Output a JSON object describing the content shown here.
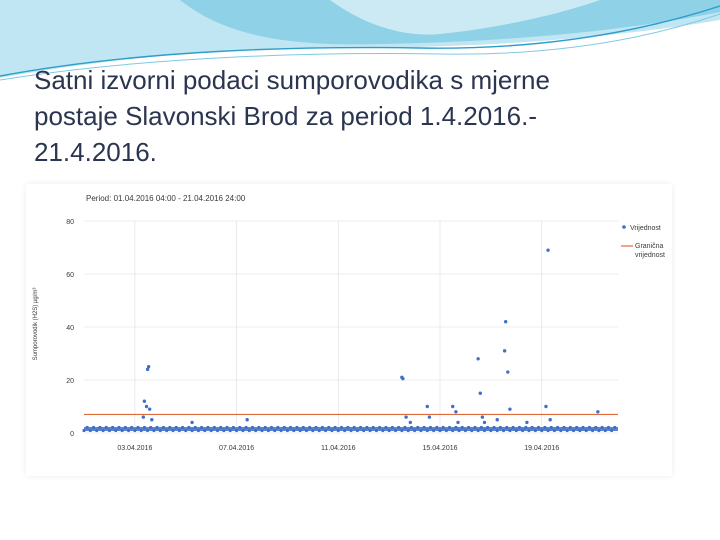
{
  "slide": {
    "title": "Satni izvorni podaci sumporovodika s mjerne\npostaje Slavonski Brod za period 1.4.2016.-\n21.4.2016."
  },
  "colors": {
    "header_wave_light": "#bfe6f2",
    "header_wave_mid": "#7fc9e3",
    "header_wave_dark": "#2e9ec8",
    "series_point": "#3f6fc6",
    "limit_line": "#e06a3c",
    "grid": "#e6e6e6",
    "title_text": "#2b3550"
  },
  "chart_data": {
    "type": "scatter",
    "title": "Period: 01.04.2016 04:00 - 21.04.2016 24:00",
    "ylabel": "Sumporovodik (H2S) µg/m³",
    "ylim": [
      0,
      80
    ],
    "yticks": [
      0,
      20,
      40,
      60,
      80
    ],
    "xlim": [
      "2016-04-01 00:00",
      "2016-04-21 24:00"
    ],
    "xticks": [
      "03.04.2016",
      "07.04.2016",
      "11.04.2016",
      "15.04.2016",
      "19.04.2016"
    ],
    "legend_position": "right",
    "grid": true,
    "baseline_value": 1.5,
    "limit_value": 7,
    "series": [
      {
        "name": "Vrijednost",
        "kind": "points",
        "points": [
          [
            "2016-04-03 12:00",
            24
          ],
          [
            "2016-04-03 13:00",
            25
          ],
          [
            "2016-04-03 09:00",
            12
          ],
          [
            "2016-04-03 11:00",
            10
          ],
          [
            "2016-04-03 14:00",
            9
          ],
          [
            "2016-04-03 16:00",
            5
          ],
          [
            "2016-04-03 08:00",
            6
          ],
          [
            "2016-04-05 06:00",
            4
          ],
          [
            "2016-04-07 10:00",
            5
          ],
          [
            "2016-04-13 12:00",
            21
          ],
          [
            "2016-04-13 13:00",
            20.5
          ],
          [
            "2016-04-13 16:00",
            6
          ],
          [
            "2016-04-13 20:00",
            4
          ],
          [
            "2016-04-14 12:00",
            10
          ],
          [
            "2016-04-14 14:00",
            6
          ],
          [
            "2016-04-15 12:00",
            10
          ],
          [
            "2016-04-15 15:00",
            8
          ],
          [
            "2016-04-15 17:00",
            4
          ],
          [
            "2016-04-16 12:00",
            28
          ],
          [
            "2016-04-16 14:00",
            15
          ],
          [
            "2016-04-16 16:00",
            6
          ],
          [
            "2016-04-16 18:00",
            4
          ],
          [
            "2016-04-17 06:00",
            5
          ],
          [
            "2016-04-17 14:00",
            42
          ],
          [
            "2016-04-17 13:00",
            31
          ],
          [
            "2016-04-17 16:00",
            23
          ],
          [
            "2016-04-17 18:00",
            9
          ],
          [
            "2016-04-18 10:00",
            4
          ],
          [
            "2016-04-19 06:00",
            69
          ],
          [
            "2016-04-19 04:00",
            10
          ],
          [
            "2016-04-19 08:00",
            5
          ],
          [
            "2016-04-21 05:00",
            8
          ]
        ]
      },
      {
        "name": "Granična vrijednost",
        "kind": "line",
        "value": 7
      }
    ]
  }
}
